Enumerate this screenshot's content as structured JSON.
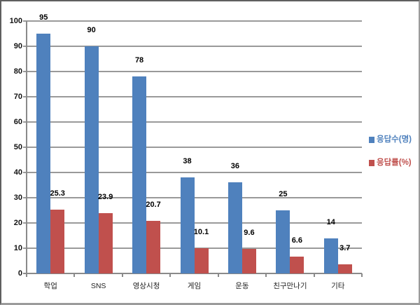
{
  "chart_data": {
    "type": "bar",
    "title": "",
    "categories": [
      "학업",
      "SNS",
      "영상시청",
      "게임",
      "운동",
      "친구만나기",
      "기타"
    ],
    "series": [
      {
        "name": "응답수(명)",
        "color": "#4f81bd",
        "values": [
          95,
          90,
          78,
          38,
          36,
          25,
          14
        ]
      },
      {
        "name": "응답률(%)",
        "color": "#c0504d",
        "values": [
          25.3,
          23.9,
          20.7,
          10.1,
          9.6,
          6.6,
          3.7
        ]
      }
    ],
    "ylabel": "",
    "xlabel": "",
    "ylim": [
      0,
      100
    ],
    "ytick_step": 10,
    "grid": true,
    "legend_position": "right",
    "data_labels": true,
    "colors": {
      "gridline": "#9a9a9a",
      "axis": "#8a8a8a",
      "value_label": "#000000",
      "category_label": "#222222",
      "background": "#ffffff"
    }
  }
}
